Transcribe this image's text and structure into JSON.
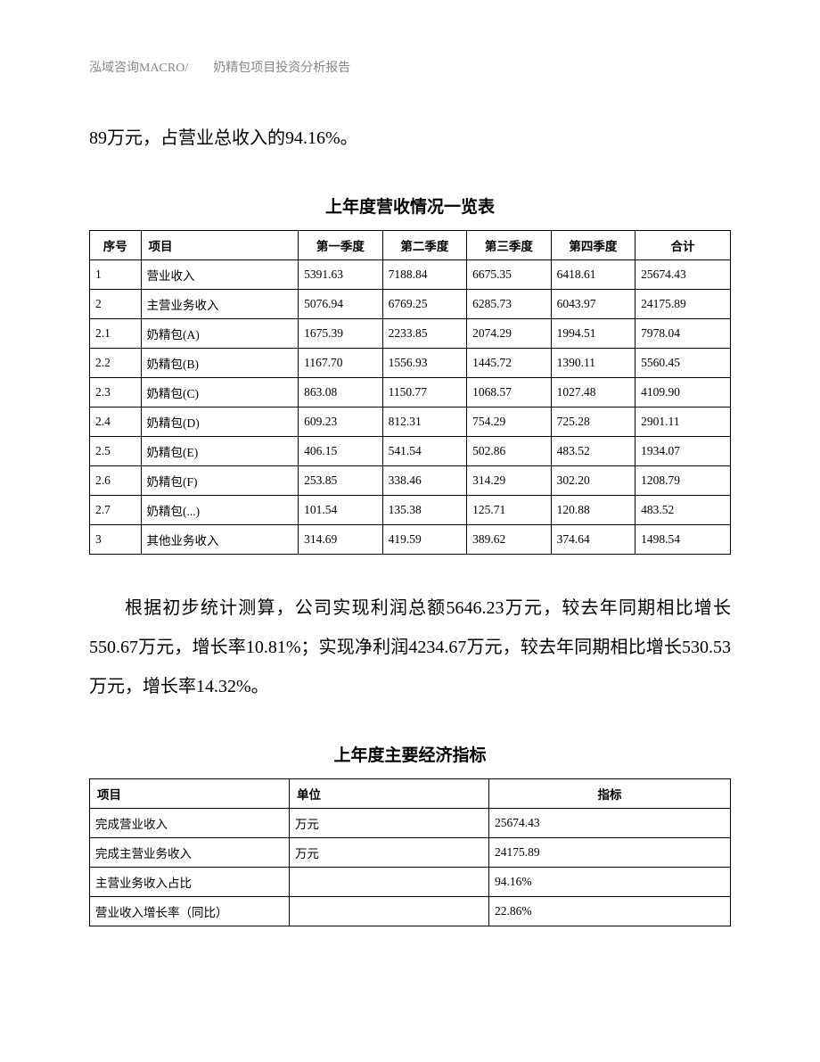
{
  "header": "泓域咨询MACRO/　　奶精包项目投资分析报告",
  "para1": "89万元，占营业总收入的94.16%。",
  "table1": {
    "title": "上年度营收情况一览表",
    "headers": [
      "序号",
      "项目",
      "第一季度",
      "第二季度",
      "第三季度",
      "第四季度",
      "合计"
    ],
    "rows": [
      [
        "1",
        "营业收入",
        "5391.63",
        "7188.84",
        "6675.35",
        "6418.61",
        "25674.43"
      ],
      [
        "2",
        "主营业务收入",
        "5076.94",
        "6769.25",
        "6285.73",
        "6043.97",
        "24175.89"
      ],
      [
        "2.1",
        "奶精包(A)",
        "1675.39",
        "2233.85",
        "2074.29",
        "1994.51",
        "7978.04"
      ],
      [
        "2.2",
        "奶精包(B)",
        "1167.70",
        "1556.93",
        "1445.72",
        "1390.11",
        "5560.45"
      ],
      [
        "2.3",
        "奶精包(C)",
        "863.08",
        "1150.77",
        "1068.57",
        "1027.48",
        "4109.90"
      ],
      [
        "2.4",
        "奶精包(D)",
        "609.23",
        "812.31",
        "754.29",
        "725.28",
        "2901.11"
      ],
      [
        "2.5",
        "奶精包(E)",
        "406.15",
        "541.54",
        "502.86",
        "483.52",
        "1934.07"
      ],
      [
        "2.6",
        "奶精包(F)",
        "253.85",
        "338.46",
        "314.29",
        "302.20",
        "1208.79"
      ],
      [
        "2.7",
        "奶精包(...)",
        "101.54",
        "135.38",
        "125.71",
        "120.88",
        "483.52"
      ],
      [
        "3",
        "其他业务收入",
        "314.69",
        "419.59",
        "389.62",
        "374.64",
        "1498.54"
      ]
    ]
  },
  "para2": "根据初步统计测算，公司实现利润总额5646.23万元，较去年同期相比增长550.67万元，增长率10.81%；实现净利润4234.67万元，较去年同期相比增长530.53万元，增长率14.32%。",
  "table2": {
    "title": "上年度主要经济指标",
    "headers": [
      "项目",
      "单位",
      "指标"
    ],
    "rows": [
      [
        "完成营业收入",
        "万元",
        "25674.43"
      ],
      [
        "完成主营业务收入",
        "万元",
        "24175.89"
      ],
      [
        "主营业务收入占比",
        "",
        "94.16%"
      ],
      [
        "营业收入增长率（同比）",
        "",
        "22.86%"
      ]
    ]
  }
}
